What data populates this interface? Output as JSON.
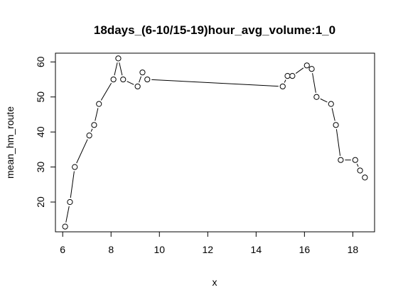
{
  "chart_data": {
    "type": "line",
    "title": "18days_(6-10/15-19)hour_avg_volume:1_0",
    "xlabel": "x",
    "ylabel": "mean_hm_route",
    "xlim": [
      5.7,
      18.9
    ],
    "ylim": [
      11.5,
      62.5
    ],
    "xticks": [
      6,
      8,
      10,
      12,
      14,
      16,
      18
    ],
    "yticks": [
      20,
      30,
      40,
      50,
      60
    ],
    "grid": false,
    "legend": "none",
    "marker": "open-circle",
    "line_style": "broken segments between points",
    "x": [
      6.1,
      6.3,
      6.5,
      7.1,
      7.3,
      7.5,
      8.1,
      8.3,
      8.5,
      9.1,
      9.3,
      9.5,
      15.1,
      15.3,
      15.5,
      16.1,
      16.3,
      16.5,
      17.1,
      17.3,
      17.5,
      18.1,
      18.3,
      18.5
    ],
    "y": [
      13,
      20,
      30,
      39,
      42,
      48,
      55,
      61,
      55,
      53,
      57,
      55,
      53,
      56,
      56,
      59,
      58,
      50,
      48,
      42,
      32,
      32,
      29,
      27
    ]
  }
}
